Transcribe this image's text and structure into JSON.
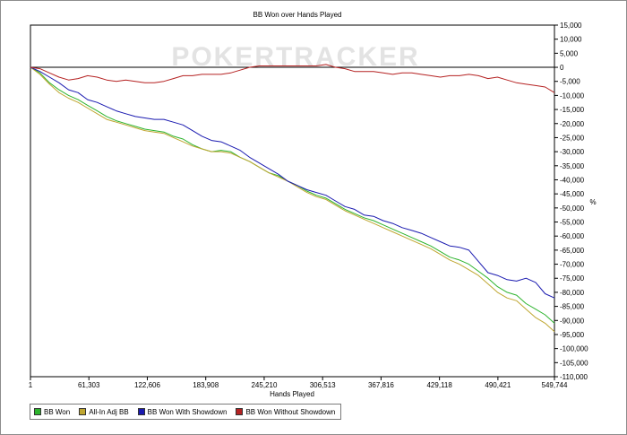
{
  "chart_data": {
    "type": "line",
    "title": "BB Won over Hands Played",
    "xlabel": "Hands Played",
    "ylabel": "",
    "y_unit_label": "%",
    "watermark": "POKERTRACKER",
    "xlim": [
      1,
      549744
    ],
    "ylim": [
      -110000,
      15000
    ],
    "x_ticks": [
      1,
      61303,
      122606,
      183908,
      245210,
      306513,
      367816,
      429118,
      490421,
      549744
    ],
    "x_tick_labels": [
      "1",
      "61,303",
      "122,606",
      "183,908",
      "245,210",
      "306,513",
      "367,816",
      "429,118",
      "490,421",
      "549,744"
    ],
    "y_ticks": [
      15000,
      10000,
      5000,
      0,
      -5000,
      -10000,
      -15000,
      -20000,
      -25000,
      -30000,
      -35000,
      -40000,
      -45000,
      -50000,
      -55000,
      -60000,
      -65000,
      -70000,
      -75000,
      -80000,
      -85000,
      -90000,
      -95000,
      -100000,
      -105000,
      -110000
    ],
    "y_tick_labels": [
      "15,000",
      "10,000",
      "5,000",
      "0",
      "-5,000",
      "-10,000",
      "-15,000",
      "-20,000",
      "-25,000",
      "-30,000",
      "-35,000",
      "-40,000",
      "-45,000",
      "-50,000",
      "-55,000",
      "-60,000",
      "-65,000",
      "-70,000",
      "-75,000",
      "-80,000",
      "-85,000",
      "-90,000",
      "-95,000",
      "-100,000",
      "-105,000",
      "-110,000"
    ],
    "legend_position": "bottom-left",
    "grid": false,
    "zero_line": true,
    "series": [
      {
        "name": "BB Won",
        "color": "#2db42d",
        "x": [
          1,
          10000,
          20000,
          30000,
          40000,
          50000,
          60000,
          70000,
          80000,
          90000,
          100000,
          110000,
          120000,
          130000,
          140000,
          150000,
          160000,
          170000,
          180000,
          190000,
          200000,
          210000,
          220000,
          230000,
          240000,
          250000,
          260000,
          270000,
          280000,
          290000,
          300000,
          310000,
          320000,
          330000,
          340000,
          350000,
          360000,
          370000,
          380000,
          390000,
          400000,
          410000,
          420000,
          430000,
          440000,
          450000,
          460000,
          470000,
          480000,
          490000,
          500000,
          510000,
          520000,
          530000,
          540000,
          549744
        ],
        "y": [
          0,
          -2000,
          -5500,
          -8000,
          -10000,
          -11500,
          -13500,
          -15500,
          -17500,
          -19000,
          -20000,
          -21000,
          -22000,
          -22500,
          -23000,
          -24500,
          -25500,
          -27500,
          -29000,
          -30000,
          -29500,
          -30000,
          -32000,
          -33500,
          -35500,
          -37500,
          -38500,
          -40500,
          -42000,
          -44000,
          -45500,
          -46500,
          -48500,
          -50500,
          -52000,
          -53500,
          -54500,
          -56000,
          -57500,
          -59000,
          -60500,
          -62000,
          -63500,
          -65500,
          -67500,
          -68500,
          -70000,
          -72500,
          -75000,
          -78000,
          -80000,
          -81000,
          -84000,
          -86000,
          -88000,
          -91000
        ]
      },
      {
        "name": "All-In Adj BB",
        "color": "#bfa630",
        "x": [
          1,
          10000,
          20000,
          30000,
          40000,
          50000,
          60000,
          70000,
          80000,
          90000,
          100000,
          110000,
          120000,
          130000,
          140000,
          150000,
          160000,
          170000,
          180000,
          190000,
          200000,
          210000,
          220000,
          230000,
          240000,
          250000,
          260000,
          270000,
          280000,
          290000,
          300000,
          310000,
          320000,
          330000,
          340000,
          350000,
          360000,
          370000,
          380000,
          390000,
          400000,
          410000,
          420000,
          430000,
          440000,
          450000,
          460000,
          470000,
          480000,
          490000,
          500000,
          510000,
          520000,
          530000,
          540000,
          549744
        ],
        "y": [
          0,
          -2500,
          -6000,
          -9000,
          -11000,
          -12500,
          -14500,
          -16500,
          -18500,
          -19500,
          -20500,
          -21500,
          -22500,
          -23000,
          -23500,
          -25000,
          -26500,
          -28000,
          -29000,
          -30000,
          -30000,
          -30500,
          -32000,
          -33500,
          -35500,
          -37500,
          -39000,
          -40500,
          -42500,
          -44500,
          -46000,
          -47000,
          -49000,
          -51000,
          -52500,
          -54000,
          -55500,
          -57000,
          -58500,
          -60000,
          -61500,
          -63000,
          -64500,
          -66500,
          -68500,
          -70000,
          -72000,
          -74000,
          -77000,
          -80000,
          -82000,
          -83000,
          -86000,
          -89000,
          -91000,
          -94000
        ]
      },
      {
        "name": "BB Won With Showdown",
        "color": "#1a1ab0",
        "x": [
          1,
          10000,
          20000,
          30000,
          40000,
          50000,
          60000,
          70000,
          80000,
          90000,
          100000,
          110000,
          120000,
          130000,
          140000,
          150000,
          160000,
          170000,
          180000,
          190000,
          200000,
          210000,
          220000,
          230000,
          240000,
          250000,
          260000,
          270000,
          280000,
          290000,
          300000,
          310000,
          320000,
          330000,
          340000,
          350000,
          360000,
          370000,
          380000,
          390000,
          400000,
          410000,
          420000,
          430000,
          440000,
          450000,
          460000,
          470000,
          480000,
          490000,
          500000,
          510000,
          520000,
          530000,
          540000,
          549744
        ],
        "y": [
          0,
          -1500,
          -3500,
          -5500,
          -8000,
          -9000,
          -11500,
          -12500,
          -14000,
          -15500,
          -16500,
          -17500,
          -18000,
          -18500,
          -18500,
          -19500,
          -20500,
          -22500,
          -24500,
          -26000,
          -26500,
          -28000,
          -29500,
          -32000,
          -34000,
          -36000,
          -38000,
          -40500,
          -42000,
          -43500,
          -44500,
          -45500,
          -47500,
          -49500,
          -50500,
          -52500,
          -53000,
          -54500,
          -55500,
          -57000,
          -58000,
          -59000,
          -60500,
          -62000,
          -63500,
          -64000,
          -65000,
          -69000,
          -73000,
          -74000,
          -75500,
          -76000,
          -75000,
          -76500,
          -80500,
          -82000
        ]
      },
      {
        "name": "BB Won Without Showdown",
        "color": "#b52222",
        "x": [
          1,
          10000,
          20000,
          30000,
          40000,
          50000,
          60000,
          70000,
          80000,
          90000,
          100000,
          110000,
          120000,
          130000,
          140000,
          150000,
          160000,
          170000,
          180000,
          190000,
          200000,
          210000,
          220000,
          230000,
          240000,
          250000,
          260000,
          270000,
          280000,
          290000,
          300000,
          310000,
          320000,
          330000,
          340000,
          350000,
          360000,
          370000,
          380000,
          390000,
          400000,
          410000,
          420000,
          430000,
          440000,
          450000,
          460000,
          470000,
          480000,
          490000,
          500000,
          510000,
          520000,
          530000,
          540000,
          549744
        ],
        "y": [
          0,
          -500,
          -2000,
          -3500,
          -4500,
          -4000,
          -3000,
          -3500,
          -4500,
          -5000,
          -4500,
          -5000,
          -5500,
          -5500,
          -5000,
          -4000,
          -3000,
          -3000,
          -2500,
          -2500,
          -2500,
          -2000,
          -1000,
          0,
          500,
          500,
          500,
          500,
          500,
          500,
          500,
          1000,
          0,
          -500,
          -1500,
          -1500,
          -1500,
          -2000,
          -2500,
          -2000,
          -2000,
          -2500,
          -3000,
          -3500,
          -3000,
          -3000,
          -2500,
          -3000,
          -4000,
          -3500,
          -4500,
          -5500,
          -6000,
          -6500,
          -7000,
          -9000
        ]
      }
    ]
  }
}
